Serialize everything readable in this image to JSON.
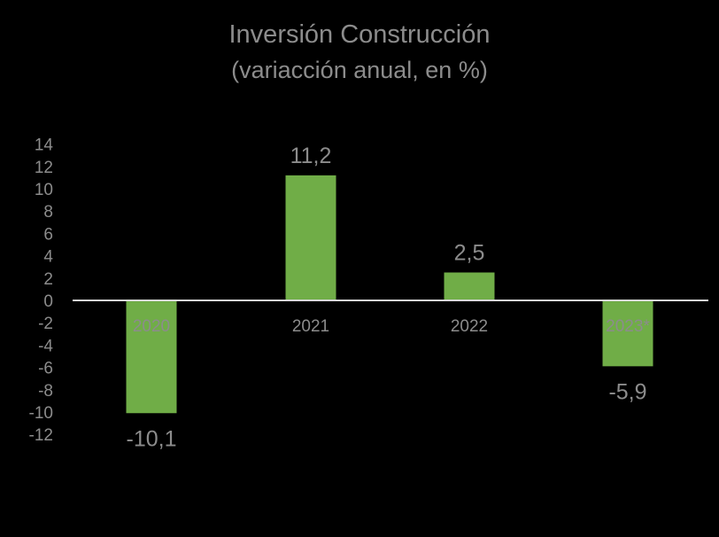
{
  "chart_data": {
    "type": "bar",
    "title": "Inversión Construcción",
    "subtitle": "(variacción anual, en %)",
    "categories": [
      "2020",
      "2021",
      "2022",
      "2023*"
    ],
    "values": [
      -10.1,
      11.2,
      2.5,
      -5.9
    ],
    "value_labels": [
      "-10,1",
      "11,2",
      "2,5",
      "-5,9"
    ],
    "yticks": [
      14,
      12,
      10,
      8,
      6,
      4,
      2,
      0,
      -2,
      -4,
      -6,
      -8,
      -10,
      -12
    ],
    "ylim": [
      -12,
      14
    ],
    "xlabel": "",
    "ylabel": "",
    "grid": false,
    "colors": {
      "background": "#000000",
      "bar": "#70ad47",
      "text": "#8c8c8c",
      "axis": "#d9d9d9"
    }
  }
}
